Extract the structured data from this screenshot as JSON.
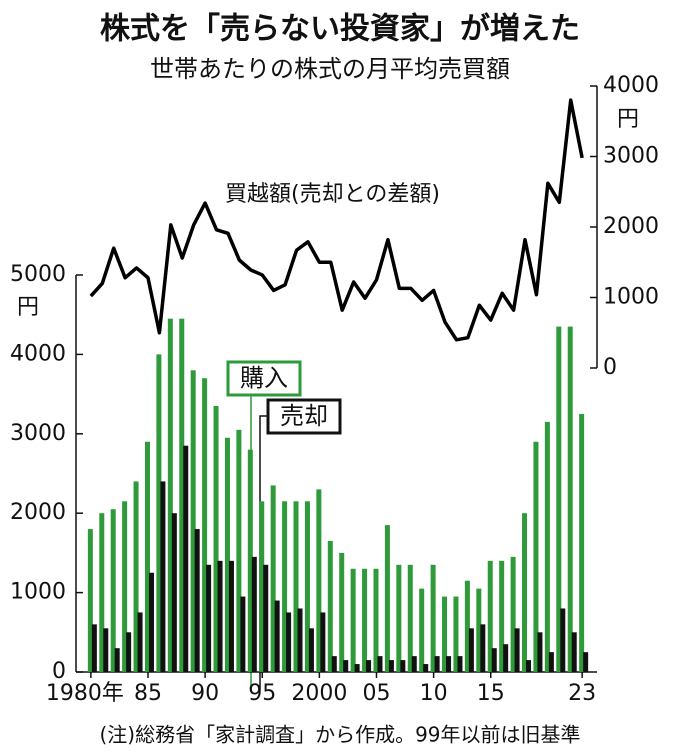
{
  "chart_data": {
    "type": "bar_line",
    "title": "株式を「売らない投資家」が増えた",
    "subtitle": "世帯あたりの株式の月平均売買額",
    "note": "(注)総務省「家計調査」から作成。99年以前は旧基準",
    "y_unit": "円",
    "y2_unit": "円",
    "line_label": "買越額(売却との差額)",
    "x": [
      1980,
      1981,
      1982,
      1983,
      1984,
      1985,
      1986,
      1987,
      1988,
      1989,
      1990,
      1991,
      1992,
      1993,
      1994,
      1995,
      1996,
      1997,
      1998,
      1999,
      2000,
      2001,
      2002,
      2003,
      2004,
      2005,
      2006,
      2007,
      2008,
      2009,
      2010,
      2011,
      2012,
      2013,
      2014,
      2015,
      2016,
      2017,
      2018,
      2019,
      2020,
      2021,
      2022,
      2023
    ],
    "xlim": [
      1978.7,
      2024.3
    ],
    "xticks": [
      {
        "value": 1980,
        "label": "1980年"
      },
      {
        "value": 1985,
        "label": "85"
      },
      {
        "value": 1990,
        "label": "90"
      },
      {
        "value": 1995,
        "label": "95"
      },
      2000,
      {
        "value": 2005,
        "label": "05"
      },
      {
        "value": 2010,
        "label": "10"
      },
      {
        "value": 2015,
        "label": "15"
      },
      {
        "value": 2023,
        "label": "23"
      }
    ],
    "ylim": [
      0,
      5000
    ],
    "yticks": [
      0,
      1000,
      2000,
      3000,
      4000,
      5000
    ],
    "y2lim": [
      0,
      4000
    ],
    "y2ticks": [
      0,
      1000,
      2000,
      3000,
      4000
    ],
    "series": [
      {
        "name": "購入",
        "color": "#2e9a3a",
        "kind": "bar",
        "values": [
          1800,
          2000,
          2050,
          2150,
          2400,
          2900,
          4000,
          4450,
          4450,
          3800,
          3700,
          3350,
          2950,
          3050,
          2800,
          2150,
          2350,
          2150,
          2150,
          2150,
          2300,
          1650,
          1500,
          1300,
          1300,
          1300,
          1850,
          1350,
          1350,
          1050,
          1350,
          950,
          950,
          1150,
          1050,
          1400,
          1400,
          1450,
          2000,
          2900,
          3150,
          4350,
          4350,
          3250
        ]
      },
      {
        "name": "売却",
        "color": "#111111",
        "kind": "bar",
        "values": [
          600,
          550,
          300,
          500,
          750,
          1250,
          2400,
          2000,
          2850,
          1800,
          1350,
          1400,
          1400,
          950,
          1450,
          1350,
          900,
          750,
          800,
          550,
          750,
          200,
          150,
          100,
          150,
          200,
          150,
          150,
          200,
          100,
          200,
          200,
          200,
          550,
          600,
          300,
          350,
          550,
          150,
          500,
          250,
          800,
          500,
          250
        ]
      },
      {
        "name": "買越額",
        "color": "#000000",
        "kind": "line",
        "axis": "y2",
        "values": [
          1020,
          1200,
          1700,
          1280,
          1420,
          1280,
          500,
          2030,
          1560,
          2030,
          2340,
          1960,
          1910,
          1530,
          1390,
          1320,
          1100,
          1180,
          1670,
          1790,
          1500,
          1500,
          820,
          1220,
          990,
          1250,
          1820,
          1130,
          1130,
          960,
          1100,
          650,
          400,
          430,
          890,
          680,
          1060,
          820,
          1820,
          1040,
          2620,
          2350,
          3800,
          2980
        ]
      }
    ]
  }
}
